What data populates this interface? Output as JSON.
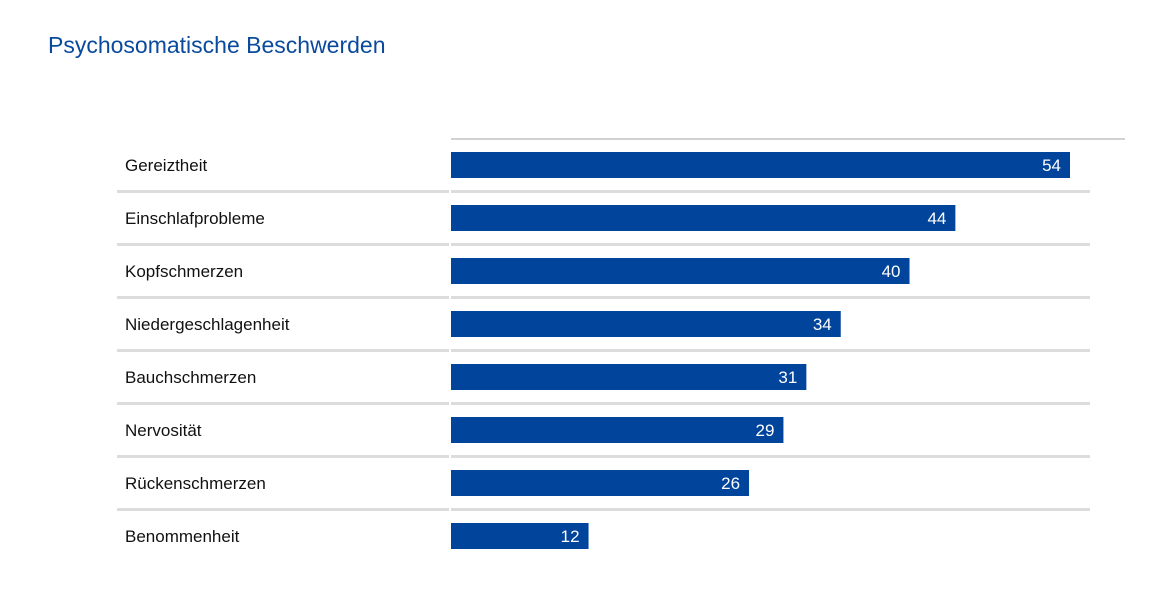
{
  "chart_data": {
    "type": "bar",
    "orientation": "horizontal",
    "title": "Psychosomatische Beschwerden",
    "categories": [
      "Gereiztheit",
      "Einschlafprobleme",
      "Kopfschmerzen",
      "Niedergeschlagenheit",
      "Bauchschmerzen",
      "Nervosität",
      "Rückenschmerzen",
      "Benommenheit"
    ],
    "values": [
      54,
      44,
      40,
      34,
      31,
      29,
      26,
      12
    ],
    "xlabel": "",
    "ylabel": "",
    "xlim": [
      0,
      54
    ],
    "grid": false,
    "legend": "none",
    "colors": {
      "bar": "#00449b",
      "separator": "#dcdcdc",
      "axis": "#a6a6a6",
      "title": "#0a4a9c"
    }
  }
}
